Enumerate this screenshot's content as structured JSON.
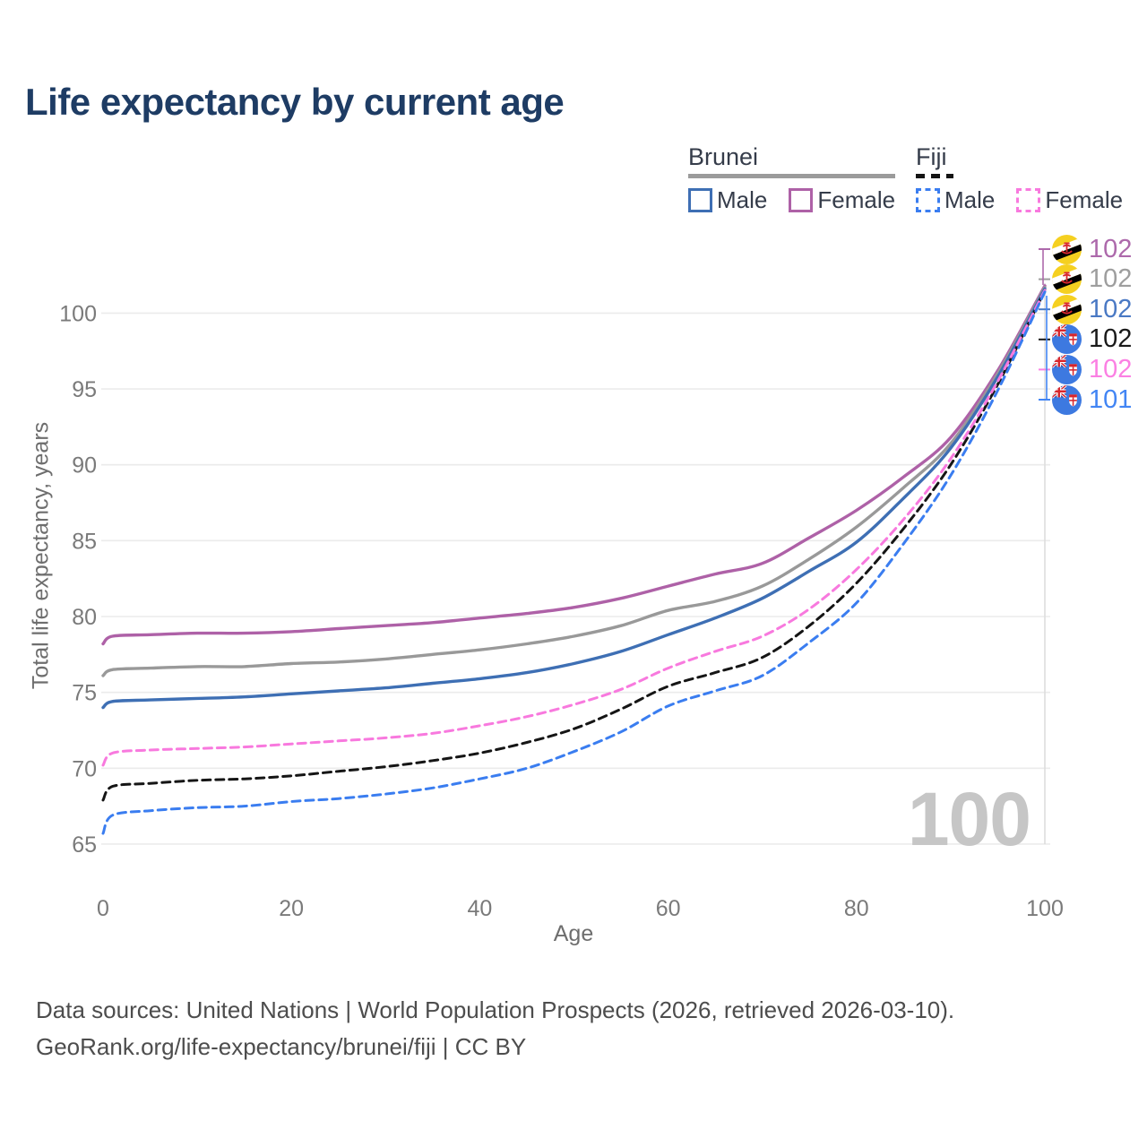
{
  "title": "Life expectancy by current age",
  "legend": {
    "groups": [
      {
        "label": "Brunei",
        "line_style": "solid",
        "items": [
          {
            "label": "Male",
            "color": "#3e6fb4"
          },
          {
            "label": "Female",
            "color": "#ae61a7"
          }
        ]
      },
      {
        "label": "Fiji",
        "line_style": "dashed",
        "items": [
          {
            "label": "Male",
            "color": "#3a7df0"
          },
          {
            "label": "Female",
            "color": "#f879de"
          }
        ]
      }
    ]
  },
  "axes": {
    "x": {
      "label": "Age",
      "ticks": [
        "0",
        "20",
        "40",
        "60",
        "80",
        "100"
      ]
    },
    "y": {
      "label": "Total life expectancy, years",
      "ticks": [
        "65",
        "70",
        "75",
        "80",
        "85",
        "90",
        "95",
        "100"
      ]
    }
  },
  "hover_indicator": {
    "age": "100"
  },
  "end_labels": [
    {
      "series": "Brunei Female",
      "flag": "brunei-flag-icon",
      "value": "102",
      "color": "#ad69ab"
    },
    {
      "series": "Brunei",
      "flag": "brunei-flag-icon",
      "value": "102",
      "color": "#9e9e9e"
    },
    {
      "series": "Brunei Male",
      "flag": "brunei-flag-icon",
      "value": "102",
      "color": "#4a79c4"
    },
    {
      "series": "Fiji",
      "flag": "fiji-flag-icon",
      "value": "102",
      "color": "#1a1a1a"
    },
    {
      "series": "Fiji Female",
      "flag": "fiji-flag-icon",
      "value": "102",
      "color": "#fb80e3"
    },
    {
      "series": "Fiji Male",
      "flag": "fiji-flag-icon",
      "value": "101",
      "color": "#4285f4"
    }
  ],
  "source": {
    "line1": "Data sources: United Nations | World Population Prospects (2026, retrieved 2026-03-10).",
    "line2": "GeoRank.org/life-expectancy/brunei/fiji | CC BY"
  },
  "chart_data": {
    "type": "line",
    "title": "Life expectancy by current age",
    "xlabel": "Age",
    "ylabel": "Total life expectancy, years",
    "xlim": [
      0,
      100
    ],
    "ylim": [
      63.5,
      103
    ],
    "grid": "horizontal",
    "legend_position": "top-right",
    "x": [
      0,
      1,
      5,
      10,
      15,
      20,
      25,
      30,
      35,
      40,
      45,
      50,
      55,
      60,
      65,
      70,
      75,
      80,
      85,
      90,
      95,
      100
    ],
    "series": [
      {
        "name": "Brunei Female",
        "country": "Brunei",
        "sex": "female",
        "color": "#ae61a7",
        "dash": "solid",
        "values": [
          78.2,
          78.7,
          78.8,
          78.9,
          78.9,
          79.0,
          79.2,
          79.4,
          79.6,
          79.9,
          80.2,
          80.6,
          81.2,
          82.0,
          82.8,
          83.5,
          85.2,
          87.0,
          89.2,
          91.8,
          96.2,
          101.8
        ]
      },
      {
        "name": "Brunei",
        "country": "Brunei",
        "sex": "both",
        "color": "#999999",
        "dash": "solid",
        "values": [
          76.1,
          76.5,
          76.6,
          76.7,
          76.7,
          76.9,
          77.0,
          77.2,
          77.5,
          77.8,
          78.2,
          78.7,
          79.4,
          80.4,
          81.0,
          82.0,
          83.8,
          85.9,
          88.5,
          91.4,
          96.0,
          101.7
        ]
      },
      {
        "name": "Brunei Male",
        "country": "Brunei",
        "sex": "male",
        "color": "#3e6fb4",
        "dash": "solid",
        "values": [
          74.0,
          74.4,
          74.5,
          74.6,
          74.7,
          74.9,
          75.1,
          75.3,
          75.6,
          75.9,
          76.3,
          76.9,
          77.7,
          78.8,
          79.9,
          81.2,
          83.0,
          84.9,
          87.8,
          91.1,
          95.8,
          101.6
        ]
      },
      {
        "name": "Fiji",
        "country": "Fiji",
        "sex": "both",
        "color": "#151515",
        "dash": "dashed",
        "values": [
          67.9,
          68.8,
          69.0,
          69.2,
          69.3,
          69.5,
          69.8,
          70.1,
          70.5,
          71.0,
          71.7,
          72.6,
          73.9,
          75.4,
          76.3,
          77.3,
          79.4,
          82.2,
          85.8,
          90.0,
          95.3,
          101.5
        ]
      },
      {
        "name": "Fiji Female",
        "country": "Fiji",
        "sex": "female",
        "color": "#f879de",
        "dash": "dashed",
        "values": [
          70.2,
          71.0,
          71.2,
          71.3,
          71.4,
          71.6,
          71.8,
          72.0,
          72.3,
          72.8,
          73.4,
          74.2,
          75.2,
          76.6,
          77.7,
          78.7,
          80.5,
          83.1,
          86.4,
          90.4,
          95.5,
          101.5
        ]
      },
      {
        "name": "Fiji Male",
        "country": "Fiji",
        "sex": "male",
        "color": "#3a7df0",
        "dash": "dashed",
        "values": [
          65.7,
          66.9,
          67.2,
          67.4,
          67.5,
          67.8,
          68.0,
          68.3,
          68.7,
          69.3,
          70.0,
          71.1,
          72.4,
          74.1,
          75.1,
          76.1,
          78.3,
          80.9,
          84.8,
          89.3,
          94.9,
          101.4
        ]
      }
    ]
  }
}
